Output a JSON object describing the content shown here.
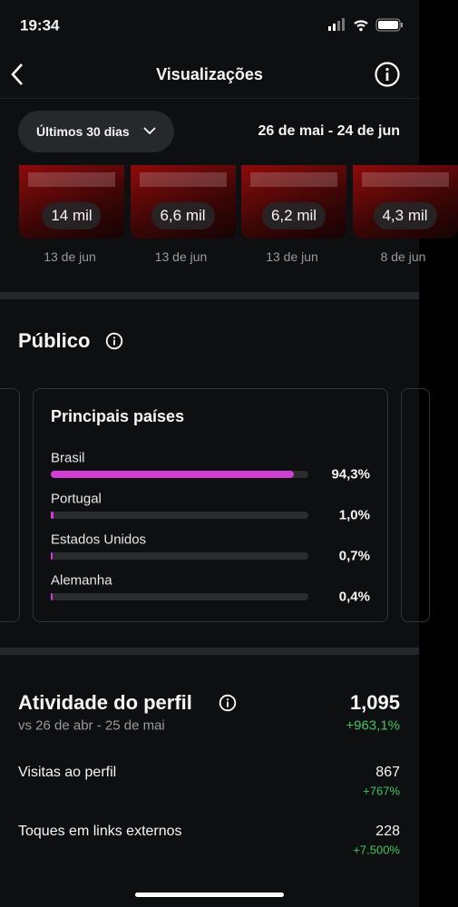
{
  "status": {
    "time": "19:34"
  },
  "header": {
    "title": "Visualizações"
  },
  "filter": {
    "period": "Últimos 30 dias",
    "range": "26 de mai - 24 de jun"
  },
  "posts": [
    {
      "views": "14 mil",
      "date": "13 de jun"
    },
    {
      "views": "6,6 mil",
      "date": "13 de jun"
    },
    {
      "views": "6,2 mil",
      "date": "13 de jun"
    },
    {
      "views": "4,3 mil",
      "date": "8 de jun"
    }
  ],
  "audience": {
    "title": "Público",
    "card_title": "Principais países",
    "countries": [
      {
        "name": "Brasil",
        "value": 94.3,
        "label": "94,3%"
      },
      {
        "name": "Portugal",
        "value": 1.0,
        "label": "1,0%"
      },
      {
        "name": "Estados Unidos",
        "value": 0.7,
        "label": "0,7%"
      },
      {
        "name": "Alemanha",
        "value": 0.4,
        "label": "0,4%"
      }
    ]
  },
  "activity": {
    "title": "Atividade do perfil",
    "comparison": "vs 26 de abr - 25 de mai",
    "total": "1,095",
    "change": "+963,1%",
    "rows": [
      {
        "label": "Visitas ao perfil",
        "value": "867",
        "change": "+767%"
      },
      {
        "label": "Toques em links externos",
        "value": "228",
        "change": "+7.500%"
      }
    ]
  }
}
